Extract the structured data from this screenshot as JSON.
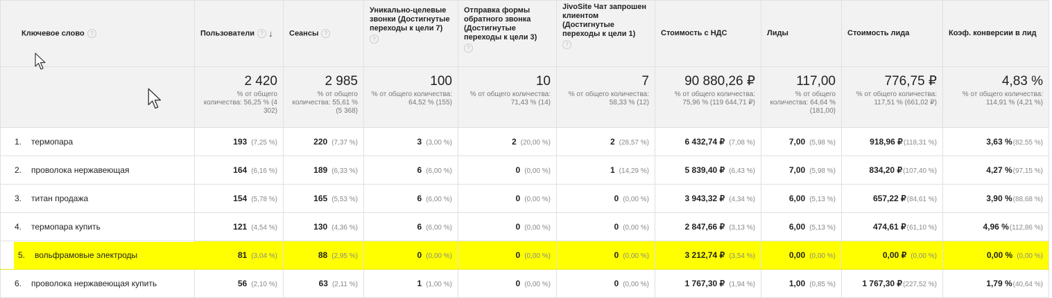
{
  "columns": [
    {
      "label": "Ключевое слово"
    },
    {
      "label": "Пользователи"
    },
    {
      "label": "Сеансы"
    },
    {
      "label": "Уникально-целевые звонки (Достигнутые переходы к цели 7)"
    },
    {
      "label": "Отправка формы обратного звонка (Достигнутые переходы к цели 3)"
    },
    {
      "label": "JivoSite Чат запрошен клиентом (Достигнутые переходы к цели 1)"
    },
    {
      "label": "Стоимость с НДС"
    },
    {
      "label": "Лиды"
    },
    {
      "label": "Стоимость лида"
    },
    {
      "label": "Коэф. конверсии в лид"
    }
  ],
  "icons": {
    "help": "help-circle-icon",
    "sort": "arrow-down-icon",
    "cursor": "mouse-pointer-icon"
  },
  "totals": [
    {
      "value": "2 420",
      "sub": "% от общего количества: 56,25 % (4 302)"
    },
    {
      "value": "2 985",
      "sub": "% от общего количества: 55,61 % (5 368)"
    },
    {
      "value": "100",
      "sub": "% от общего количества: 64,52 % (155)"
    },
    {
      "value": "10",
      "sub": "% от общего количества: 71,43 % (14)"
    },
    {
      "value": "7",
      "sub": "% от общего количества: 58,33 % (12)"
    },
    {
      "value": "90 880,26 ₽",
      "sub": "% от общего количества: 75,96 % (119 644,71 ₽)"
    },
    {
      "value": "117,00",
      "sub": "% от общего количества: 64,64 % (181,00)"
    },
    {
      "value": "776,75 ₽",
      "sub": "% от общего количества: 117,51 % (661,02 ₽)"
    },
    {
      "value": "4,83 %",
      "sub": "% от общего количества: 114,91 % (4,21 %)"
    }
  ],
  "rows": [
    {
      "num": "1.",
      "keyword": "термопара",
      "highlight": false,
      "cells": [
        [
          "193",
          "(7,25 %)"
        ],
        [
          "220",
          "(7,37 %)"
        ],
        [
          "3",
          "(3,00 %)"
        ],
        [
          "2",
          "(20,00 %)"
        ],
        [
          "2",
          "(28,57 %)"
        ],
        [
          "6 432,74 ₽",
          "(7,08 %)"
        ],
        [
          "7,00",
          "(5,98 %)"
        ],
        [
          "918,96 ₽",
          "(118,31 %)"
        ],
        [
          "3,63 %",
          "(82,55 %)"
        ]
      ]
    },
    {
      "num": "2.",
      "keyword": "проволока нержавеющая",
      "highlight": false,
      "cells": [
        [
          "164",
          "(6,16 %)"
        ],
        [
          "189",
          "(6,33 %)"
        ],
        [
          "6",
          "(6,00 %)"
        ],
        [
          "0",
          "(0,00 %)"
        ],
        [
          "1",
          "(14,29 %)"
        ],
        [
          "5 839,40 ₽",
          "(6,43 %)"
        ],
        [
          "7,00",
          "(5,98 %)"
        ],
        [
          "834,20 ₽",
          "(107,40 %)"
        ],
        [
          "4,27 %",
          "(97,15 %)"
        ]
      ]
    },
    {
      "num": "3.",
      "keyword": "титан продажа",
      "highlight": false,
      "cells": [
        [
          "154",
          "(5,78 %)"
        ],
        [
          "165",
          "(5,53 %)"
        ],
        [
          "6",
          "(6,00 %)"
        ],
        [
          "0",
          "(0,00 %)"
        ],
        [
          "0",
          "(0,00 %)"
        ],
        [
          "3 943,32 ₽",
          "(4,34 %)"
        ],
        [
          "6,00",
          "(5,13 %)"
        ],
        [
          "657,22 ₽",
          "(84,61 %)"
        ],
        [
          "3,90 %",
          "(88,68 %)"
        ]
      ]
    },
    {
      "num": "4.",
      "keyword": "термопара купить",
      "highlight": false,
      "cells": [
        [
          "121",
          "(4,54 %)"
        ],
        [
          "130",
          "(4,36 %)"
        ],
        [
          "6",
          "(6,00 %)"
        ],
        [
          "0",
          "(0,00 %)"
        ],
        [
          "0",
          "(0,00 %)"
        ],
        [
          "2 847,66 ₽",
          "(3,13 %)"
        ],
        [
          "6,00",
          "(5,13 %)"
        ],
        [
          "474,61 ₽",
          "(61,10 %)"
        ],
        [
          "4,96 %",
          "(112,86 %)"
        ]
      ]
    },
    {
      "num": "5.",
      "keyword": "вольфрамовые электроды",
      "highlight": true,
      "cells": [
        [
          "81",
          "(3,04 %)"
        ],
        [
          "88",
          "(2,95 %)"
        ],
        [
          "0",
          "(0,00 %)"
        ],
        [
          "0",
          "(0,00 %)"
        ],
        [
          "0",
          "(0,00 %)"
        ],
        [
          "3 212,74 ₽",
          "(3,54 %)"
        ],
        [
          "0,00",
          "(0,00 %)"
        ],
        [
          "0,00 ₽",
          "(0,00 %)"
        ],
        [
          "0,00 %",
          "(0,00 %)"
        ]
      ]
    },
    {
      "num": "6.",
      "keyword": "проволока нержавеющая купить",
      "highlight": false,
      "cells": [
        [
          "56",
          "(2,10 %)"
        ],
        [
          "63",
          "(2,11 %)"
        ],
        [
          "1",
          "(1,00 %)"
        ],
        [
          "0",
          "(0,00 %)"
        ],
        [
          "0",
          "(0,00 %)"
        ],
        [
          "1 767,30 ₽",
          "(1,94 %)"
        ],
        [
          "1,00",
          "(0,85 %)"
        ],
        [
          "1 767,30 ₽",
          "(227,52 %)"
        ],
        [
          "1,79 %",
          "(40,64 %)"
        ]
      ]
    }
  ]
}
